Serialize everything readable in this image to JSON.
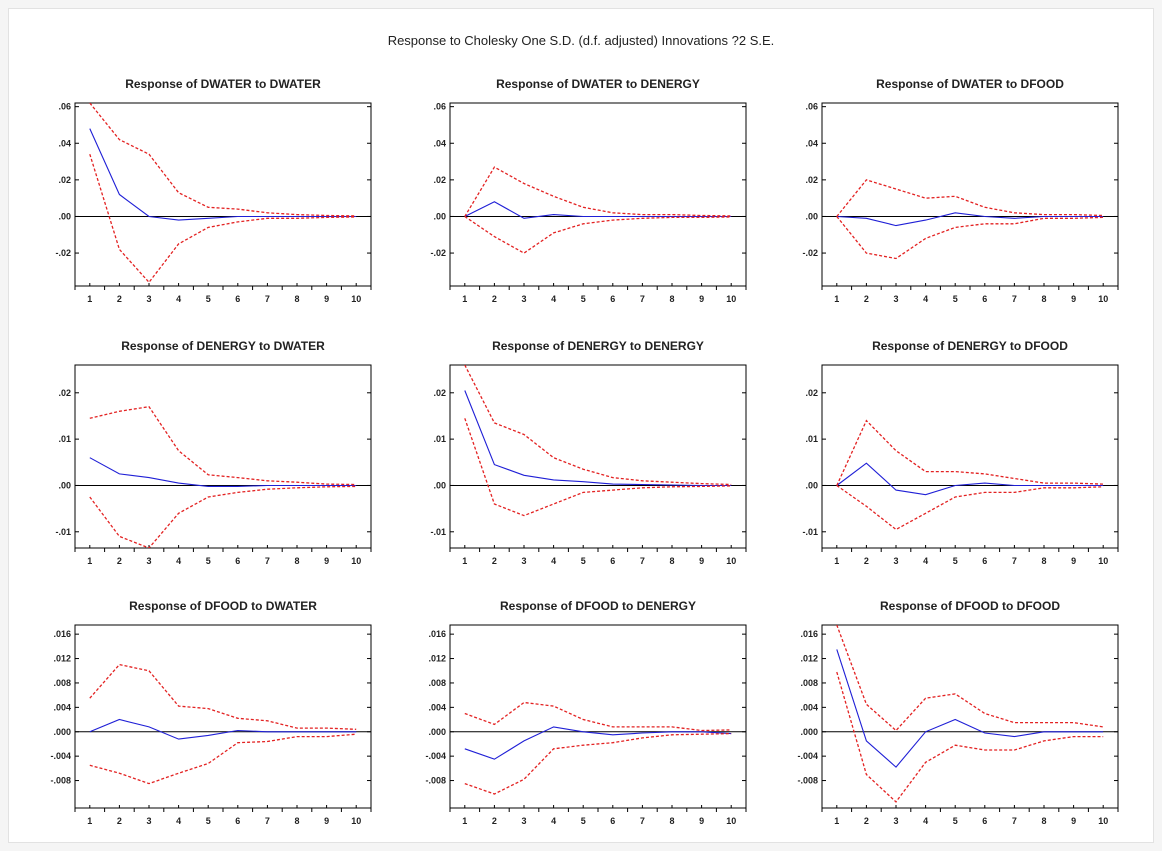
{
  "main_title": "Response to Cholesky One S.D. (d.f. adjusted) Innovations ?2 S.E.",
  "colors": {
    "response": "#1f1fd6",
    "band": "#e32222",
    "zero": "#000000",
    "frame": "#000000"
  },
  "chart_data": [
    {
      "type": "line",
      "title": "Response of DWATER to DWATER",
      "x": [
        1,
        2,
        3,
        4,
        5,
        6,
        7,
        8,
        9,
        10
      ],
      "ylim": [
        -0.038,
        0.062
      ],
      "yticks": [
        0.06,
        0.04,
        0.02,
        0.0,
        -0.02
      ],
      "ytick_labels": [
        ".06",
        ".04",
        ".02",
        ".00",
        "-.02"
      ],
      "series": [
        {
          "role": "response",
          "values": [
            0.048,
            0.012,
            0.0,
            -0.002,
            -0.001,
            0.0,
            0.0,
            0.0,
            0.0,
            0.0
          ]
        },
        {
          "role": "upper",
          "values": [
            0.062,
            0.042,
            0.034,
            0.013,
            0.005,
            0.004,
            0.002,
            0.001,
            0.0005,
            0.0003
          ]
        },
        {
          "role": "lower",
          "values": [
            0.034,
            -0.018,
            -0.036,
            -0.015,
            -0.006,
            -0.003,
            -0.001,
            -0.001,
            -0.0005,
            -0.0003
          ]
        }
      ]
    },
    {
      "type": "line",
      "title": "Response of DWATER to DENERGY",
      "x": [
        1,
        2,
        3,
        4,
        5,
        6,
        7,
        8,
        9,
        10
      ],
      "ylim": [
        -0.038,
        0.062
      ],
      "yticks": [
        0.06,
        0.04,
        0.02,
        0.0,
        -0.02
      ],
      "ytick_labels": [
        ".06",
        ".04",
        ".02",
        ".00",
        "-.02"
      ],
      "series": [
        {
          "role": "response",
          "values": [
            0.0,
            0.008,
            -0.001,
            0.001,
            0.0,
            0.0,
            0.0,
            0.0,
            0.0,
            0.0
          ]
        },
        {
          "role": "upper",
          "values": [
            0.0,
            0.027,
            0.018,
            0.011,
            0.005,
            0.002,
            0.001,
            0.001,
            0.0005,
            0.0003
          ]
        },
        {
          "role": "lower",
          "values": [
            0.0,
            -0.011,
            -0.02,
            -0.009,
            -0.004,
            -0.002,
            -0.001,
            -0.0005,
            -0.0005,
            -0.0003
          ]
        }
      ]
    },
    {
      "type": "line",
      "title": "Response of DWATER to DFOOD",
      "x": [
        1,
        2,
        3,
        4,
        5,
        6,
        7,
        8,
        9,
        10
      ],
      "ylim": [
        -0.038,
        0.062
      ],
      "yticks": [
        0.06,
        0.04,
        0.02,
        0.0,
        -0.02
      ],
      "ytick_labels": [
        ".06",
        ".04",
        ".02",
        ".00",
        "-.02"
      ],
      "series": [
        {
          "role": "response",
          "values": [
            0.0,
            -0.001,
            -0.005,
            -0.002,
            0.002,
            0.0,
            -0.001,
            0.0,
            0.0,
            0.0
          ]
        },
        {
          "role": "upper",
          "values": [
            0.0,
            0.02,
            0.015,
            0.01,
            0.011,
            0.005,
            0.002,
            0.001,
            0.001,
            0.0005
          ]
        },
        {
          "role": "lower",
          "values": [
            0.0,
            -0.02,
            -0.023,
            -0.012,
            -0.006,
            -0.004,
            -0.004,
            -0.001,
            -0.001,
            -0.0005
          ]
        }
      ]
    },
    {
      "type": "line",
      "title": "Response of DENERGY to DWATER",
      "x": [
        1,
        2,
        3,
        4,
        5,
        6,
        7,
        8,
        9,
        10
      ],
      "ylim": [
        -0.0135,
        0.026
      ],
      "yticks": [
        0.02,
        0.01,
        0.0,
        -0.01
      ],
      "ytick_labels": [
        ".02",
        ".01",
        ".00",
        "-.01"
      ],
      "series": [
        {
          "role": "response",
          "values": [
            0.006,
            0.0025,
            0.0017,
            0.0005,
            -0.0002,
            -0.0002,
            0.0,
            0.0,
            0.0,
            0.0
          ]
        },
        {
          "role": "upper",
          "values": [
            0.0145,
            0.016,
            0.017,
            0.0075,
            0.0023,
            0.0017,
            0.001,
            0.0007,
            0.0003,
            0.0002
          ]
        },
        {
          "role": "lower",
          "values": [
            -0.0025,
            -0.011,
            -0.0135,
            -0.006,
            -0.0025,
            -0.0015,
            -0.0008,
            -0.0005,
            -0.0003,
            -0.0002
          ]
        }
      ]
    },
    {
      "type": "line",
      "title": "Response of DENERGY to DENERGY",
      "x": [
        1,
        2,
        3,
        4,
        5,
        6,
        7,
        8,
        9,
        10
      ],
      "ylim": [
        -0.0135,
        0.026
      ],
      "yticks": [
        0.02,
        0.01,
        0.0,
        -0.01
      ],
      "ytick_labels": [
        ".02",
        ".01",
        ".00",
        "-.01"
      ],
      "series": [
        {
          "role": "response",
          "values": [
            0.0205,
            0.0045,
            0.0022,
            0.0012,
            0.0008,
            0.0003,
            0.0002,
            0.0001,
            0.0,
            0.0
          ]
        },
        {
          "role": "upper",
          "values": [
            0.026,
            0.0135,
            0.011,
            0.006,
            0.0035,
            0.0017,
            0.001,
            0.0007,
            0.0004,
            0.0002
          ]
        },
        {
          "role": "lower",
          "values": [
            0.0145,
            -0.004,
            -0.0065,
            -0.004,
            -0.0015,
            -0.001,
            -0.0005,
            -0.0003,
            -0.0002,
            -0.0001
          ]
        }
      ]
    },
    {
      "type": "line",
      "title": "Response of DENERGY to DFOOD",
      "x": [
        1,
        2,
        3,
        4,
        5,
        6,
        7,
        8,
        9,
        10
      ],
      "ylim": [
        -0.0135,
        0.026
      ],
      "yticks": [
        0.02,
        0.01,
        0.0,
        -0.01
      ],
      "ytick_labels": [
        ".02",
        ".01",
        ".00",
        "-.01"
      ],
      "series": [
        {
          "role": "response",
          "values": [
            0.0,
            0.0048,
            -0.001,
            -0.002,
            0.0,
            0.0005,
            0.0,
            0.0,
            0.0,
            0.0
          ]
        },
        {
          "role": "upper",
          "values": [
            0.0,
            0.014,
            0.0075,
            0.003,
            0.003,
            0.0025,
            0.0015,
            0.0005,
            0.0005,
            0.0003
          ]
        },
        {
          "role": "lower",
          "values": [
            0.0,
            -0.0045,
            -0.0095,
            -0.006,
            -0.0025,
            -0.0015,
            -0.0015,
            -0.0005,
            -0.0005,
            -0.0003
          ]
        }
      ]
    },
    {
      "type": "line",
      "title": "Response of DFOOD to DWATER",
      "x": [
        1,
        2,
        3,
        4,
        5,
        6,
        7,
        8,
        9,
        10
      ],
      "ylim": [
        -0.0125,
        0.0175
      ],
      "yticks": [
        0.016,
        0.012,
        0.008,
        0.004,
        0.0,
        -0.004,
        -0.008
      ],
      "ytick_labels": [
        ".016",
        ".012",
        ".008",
        ".004",
        ".000",
        "-.004",
        "-.008"
      ],
      "series": [
        {
          "role": "response",
          "values": [
            0.0,
            0.002,
            0.0008,
            -0.0012,
            -0.0006,
            0.0002,
            0.0,
            0.0,
            0.0,
            0.0
          ]
        },
        {
          "role": "upper",
          "values": [
            0.0055,
            0.011,
            0.01,
            0.0042,
            0.0038,
            0.0022,
            0.0018,
            0.0006,
            0.0006,
            0.0004
          ]
        },
        {
          "role": "lower",
          "values": [
            -0.0055,
            -0.0068,
            -0.0085,
            -0.0068,
            -0.0052,
            -0.0018,
            -0.0016,
            -0.0008,
            -0.0008,
            -0.0004
          ]
        }
      ]
    },
    {
      "type": "line",
      "title": "Response of DFOOD to DENERGY",
      "x": [
        1,
        2,
        3,
        4,
        5,
        6,
        7,
        8,
        9,
        10
      ],
      "ylim": [
        -0.0125,
        0.0175
      ],
      "yticks": [
        0.016,
        0.012,
        0.008,
        0.004,
        0.0,
        -0.004,
        -0.008
      ],
      "ytick_labels": [
        ".016",
        ".012",
        ".008",
        ".004",
        ".000",
        "-.004",
        "-.008"
      ],
      "series": [
        {
          "role": "response",
          "values": [
            -0.0028,
            -0.0045,
            -0.0015,
            0.0008,
            0.0,
            -0.0005,
            -0.0002,
            0.0,
            0.0,
            -0.0003
          ]
        },
        {
          "role": "upper",
          "values": [
            0.003,
            0.0012,
            0.0048,
            0.0042,
            0.002,
            0.0008,
            0.0008,
            0.0008,
            0.0002,
            0.0003
          ]
        },
        {
          "role": "lower",
          "values": [
            -0.0085,
            -0.0102,
            -0.0078,
            -0.0028,
            -0.0022,
            -0.0018,
            -0.001,
            -0.0005,
            -0.0004,
            -0.0003
          ]
        }
      ]
    },
    {
      "type": "line",
      "title": "Response of DFOOD to DFOOD",
      "x": [
        1,
        2,
        3,
        4,
        5,
        6,
        7,
        8,
        9,
        10
      ],
      "ylim": [
        -0.0125,
        0.0175
      ],
      "yticks": [
        0.016,
        0.012,
        0.008,
        0.004,
        0.0,
        -0.004,
        -0.008
      ],
      "ytick_labels": [
        ".016",
        ".012",
        ".008",
        ".004",
        ".000",
        "-.004",
        "-.008"
      ],
      "series": [
        {
          "role": "response",
          "values": [
            0.0135,
            -0.0015,
            -0.0058,
            0.0,
            0.002,
            -0.0002,
            -0.0008,
            0.0,
            0.0,
            0.0
          ]
        },
        {
          "role": "upper",
          "values": [
            0.0175,
            0.0045,
            0.0002,
            0.0055,
            0.0062,
            0.003,
            0.0015,
            0.0015,
            0.0015,
            0.0008
          ]
        },
        {
          "role": "lower",
          "values": [
            0.0098,
            -0.007,
            -0.0115,
            -0.005,
            -0.0022,
            -0.003,
            -0.003,
            -0.0015,
            -0.0008,
            -0.0008
          ]
        }
      ]
    }
  ]
}
